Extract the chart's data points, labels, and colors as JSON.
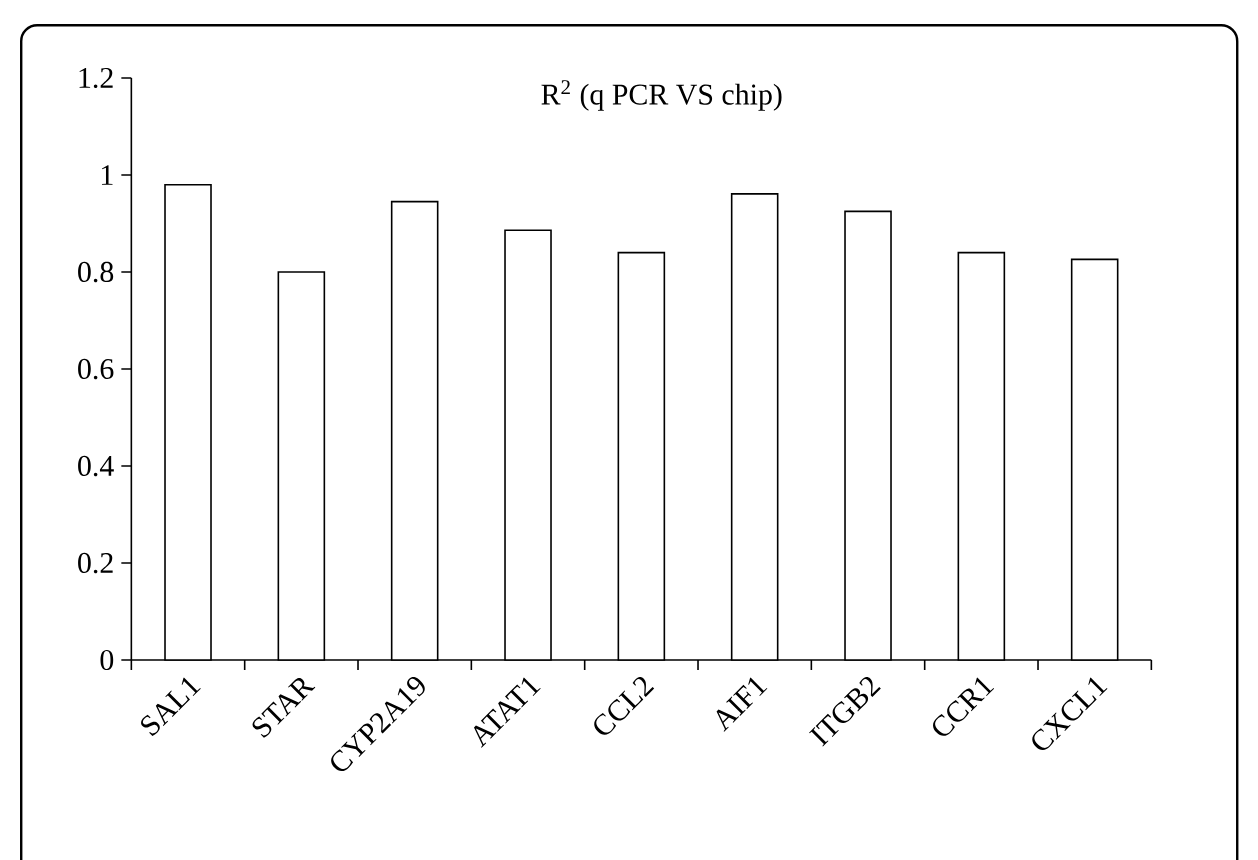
{
  "chart_data": {
    "type": "bar",
    "title": "R$^{2}$ (q PCR VS chip)",
    "categories": [
      "SAL1",
      "STAR",
      "CYP2A19",
      "ATAT1",
      "CCL2",
      "AIF1",
      "ITGB2",
      "CCR1",
      "CXCL1"
    ],
    "values": [
      0.98,
      0.8,
      0.945,
      0.886,
      0.84,
      0.961,
      0.925,
      0.84,
      0.826
    ],
    "color": "#ffffff",
    "ylim": [
      0,
      1.2
    ],
    "yticks": [
      0,
      0.2,
      0.4,
      0.6,
      0.8,
      1,
      1.2
    ],
    "grid": false
  }
}
